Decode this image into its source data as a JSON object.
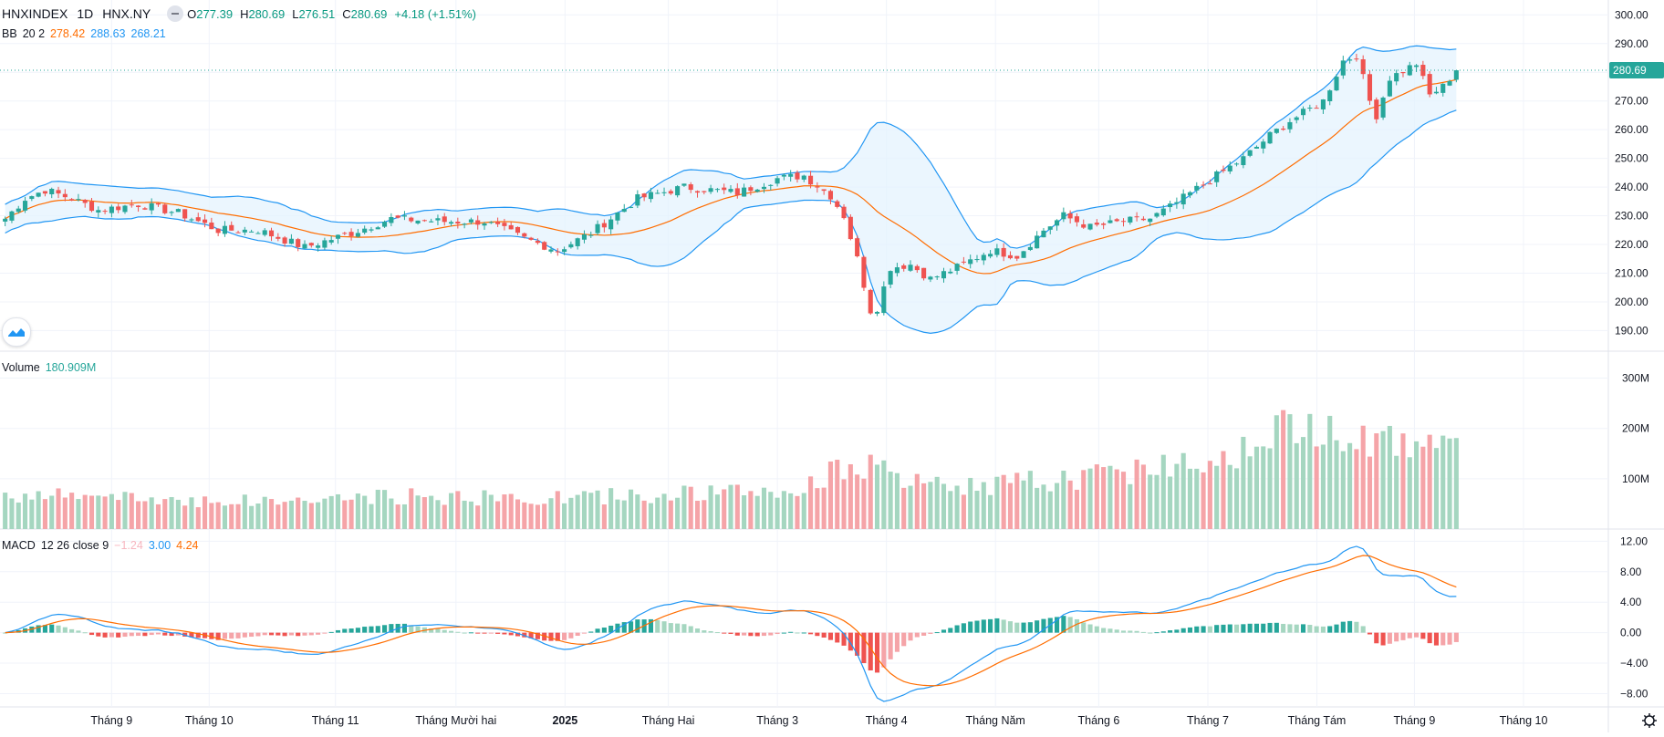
{
  "header": {
    "symbol": "HNXINDEX",
    "interval": "1D",
    "exchange": "HNX.NY",
    "open_label": "O",
    "open": "277.39",
    "high_label": "H",
    "high": "280.69",
    "low_label": "L",
    "low": "276.51",
    "close_label": "C",
    "close": "280.69",
    "change": "+4.18 (+1.51%)"
  },
  "indicators": {
    "bb": {
      "name": "BB",
      "params": "20 2",
      "basis": "278.42",
      "upper": "288.63",
      "lower": "268.21"
    },
    "volume": {
      "name": "Volume",
      "value": "180.909M"
    },
    "macd": {
      "name": "MACD",
      "params": "12 26 close 9",
      "hist": "−1.24",
      "macd": "3.00",
      "signal": "4.24"
    }
  },
  "colors": {
    "up": "#26a69a",
    "down": "#ef5350",
    "up_volume": "#a5d6c0",
    "down_volume": "#f5a4a8",
    "bb_band": "#2196f3",
    "bb_basis": "#ff6d00",
    "bb_fill": "#e3f2fd",
    "macd_line": "#2196f3",
    "signal_line": "#ff6d00",
    "price_tag": "#26a69a"
  },
  "chart_data": [
    {
      "type": "candlestick",
      "title": "HNXINDEX",
      "price_axis_ticks": [
        "300.00",
        "290.00",
        "280.00",
        "270.00",
        "260.00",
        "250.00",
        "240.00",
        "230.00",
        "220.00",
        "210.00",
        "200.00",
        "190.00"
      ],
      "ylim": [
        186,
        302
      ],
      "last_price": "280.69",
      "x_axis_labels": [
        "Tháng 9",
        "Tháng 10",
        "Tháng 11",
        "Tháng Mười hai",
        "2025",
        "Tháng Hai",
        "Tháng 3",
        "Tháng 4",
        "Tháng Năm",
        "Tháng 6",
        "Tháng 7",
        "Tháng Tám",
        "Tháng 9",
        "Tháng 10"
      ],
      "close_keyframes": [
        [
          0,
          229
        ],
        [
          3,
          236
        ],
        [
          6,
          239
        ],
        [
          10,
          236
        ],
        [
          14,
          232
        ],
        [
          20,
          234
        ],
        [
          26,
          231
        ],
        [
          32,
          225
        ],
        [
          38,
          225
        ],
        [
          45,
          219
        ],
        [
          52,
          224
        ],
        [
          58,
          229
        ],
        [
          66,
          228
        ],
        [
          72,
          228
        ],
        [
          78,
          222
        ],
        [
          83,
          218
        ],
        [
          88,
          224
        ],
        [
          95,
          236
        ],
        [
          102,
          240
        ],
        [
          110,
          238
        ],
        [
          116,
          243
        ],
        [
          120,
          244
        ],
        [
          124,
          237
        ],
        [
          126,
          230
        ],
        [
          128,
          215
        ],
        [
          130,
          197
        ],
        [
          131,
          198
        ],
        [
          133,
          212
        ],
        [
          136,
          213
        ],
        [
          139,
          208
        ],
        [
          143,
          212
        ],
        [
          148,
          218
        ],
        [
          152,
          216
        ],
        [
          156,
          225
        ],
        [
          159,
          230
        ],
        [
          163,
          226
        ],
        [
          168,
          228
        ],
        [
          172,
          229
        ],
        [
          175,
          233
        ],
        [
          180,
          241
        ],
        [
          186,
          250
        ],
        [
          190,
          258
        ],
        [
          193,
          263
        ],
        [
          198,
          270
        ],
        [
          201,
          284
        ],
        [
          203,
          286
        ],
        [
          205,
          270
        ],
        [
          206,
          265
        ],
        [
          208,
          278
        ],
        [
          212,
          283
        ],
        [
          214,
          272
        ],
        [
          216,
          275
        ],
        [
          218,
          280.69
        ]
      ],
      "bb_period": 20,
      "bb_mult": 2
    },
    {
      "type": "bar",
      "title": "Volume",
      "axis_ticks": [
        "300M",
        "200M",
        "100M"
      ],
      "ylim": [
        0,
        330000000
      ],
      "last_value": "180.909M",
      "volume_keyframes_millions": [
        [
          0,
          70
        ],
        [
          20,
          60
        ],
        [
          40,
          55
        ],
        [
          60,
          65
        ],
        [
          80,
          60
        ],
        [
          100,
          70
        ],
        [
          120,
          75
        ],
        [
          125,
          130
        ],
        [
          130,
          120
        ],
        [
          135,
          95
        ],
        [
          140,
          85
        ],
        [
          150,
          90
        ],
        [
          160,
          100
        ],
        [
          170,
          120
        ],
        [
          180,
          140
        ],
        [
          185,
          160
        ],
        [
          190,
          190
        ],
        [
          195,
          200
        ],
        [
          200,
          210
        ],
        [
          205,
          190
        ],
        [
          210,
          170
        ],
        [
          215,
          150
        ],
        [
          218,
          180.909
        ]
      ]
    },
    {
      "type": "line+histogram",
      "title": "MACD",
      "params": "12 26 close 9",
      "axis_ticks": [
        "12.00",
        "8.00",
        "4.00",
        "0.00",
        "−4.00",
        "−8.00"
      ],
      "ylim": [
        -9.5,
        13
      ],
      "series": [
        {
          "name": "MACD",
          "last": "3.00"
        },
        {
          "name": "Signal",
          "last": "4.24"
        },
        {
          "name": "Histogram",
          "last": "−1.24"
        }
      ]
    }
  ],
  "ui": {
    "settings_icon": "gear-icon",
    "logo_icon": "tradingview-logo-icon"
  }
}
